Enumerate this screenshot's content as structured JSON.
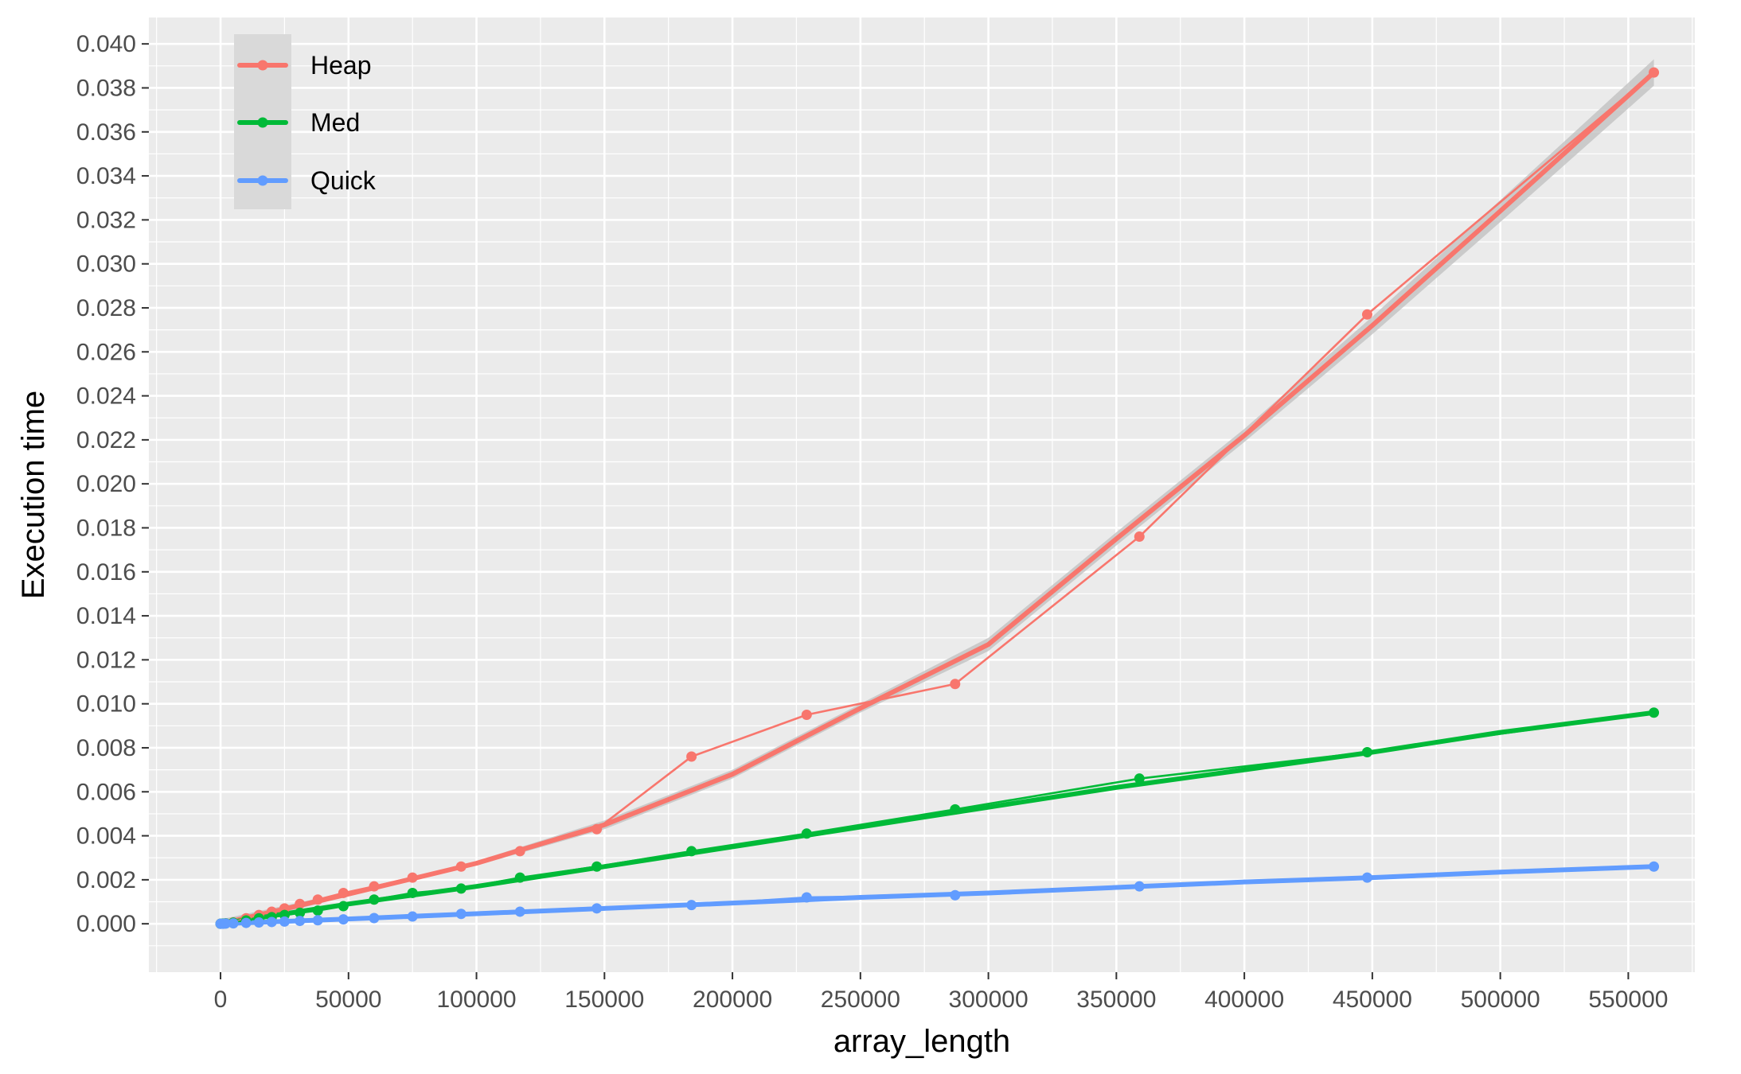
{
  "chart_data": {
    "type": "line",
    "xlabel": "array_length",
    "ylabel": "Execution time",
    "xlim": [
      -28000,
      576000
    ],
    "ylim": [
      -0.0022,
      0.0412
    ],
    "x_ticks": [
      0,
      50000,
      100000,
      150000,
      200000,
      250000,
      300000,
      350000,
      400000,
      450000,
      500000,
      550000
    ],
    "x_tick_labels": [
      "0",
      "50000",
      "100000",
      "150000",
      "200000",
      "250000",
      "300000",
      "350000",
      "400000",
      "450000",
      "500000",
      "550000"
    ],
    "y_ticks": [
      0.0,
      0.002,
      0.004,
      0.006,
      0.008,
      0.01,
      0.012,
      0.014,
      0.016,
      0.018,
      0.02,
      0.022,
      0.024,
      0.026,
      0.028,
      0.03,
      0.032,
      0.034,
      0.036,
      0.038,
      0.04
    ],
    "y_tick_labels": [
      "0.000",
      "0.002",
      "0.004",
      "0.006",
      "0.008",
      "0.010",
      "0.012",
      "0.014",
      "0.016",
      "0.018",
      "0.020",
      "0.022",
      "0.024",
      "0.026",
      "0.028",
      "0.030",
      "0.032",
      "0.034",
      "0.036",
      "0.038",
      "0.040"
    ],
    "grid": true,
    "legend_position": "top-left",
    "colors": {
      "Heap": "#f8766d",
      "Med": "#00ba38",
      "Quick": "#619cff",
      "band": "#bfbfbf",
      "panel": "#ebebeb",
      "grid": "#ffffff"
    },
    "x": [
      0,
      1000,
      2000,
      5000,
      10000,
      15000,
      20000,
      25000,
      31000,
      38000,
      48000,
      60000,
      75000,
      94000,
      117000,
      147000,
      184000,
      229000,
      287000,
      359000,
      448000,
      560000
    ],
    "series": [
      {
        "name": "Heap",
        "values": [
          0.0,
          1e-05,
          2e-05,
          6e-05,
          0.00025,
          0.0004,
          0.00055,
          0.0007,
          0.0009,
          0.0011,
          0.0014,
          0.0017,
          0.0021,
          0.0026,
          0.0033,
          0.0043,
          0.0076,
          0.0095,
          0.0109,
          0.0176,
          0.0277,
          0.0387
        ]
      },
      {
        "name": "Med",
        "values": [
          0.0,
          1e-05,
          2e-05,
          5e-05,
          0.00015,
          0.00025,
          0.0003,
          0.0004,
          0.0005,
          0.0006,
          0.0008,
          0.0011,
          0.0014,
          0.0016,
          0.0021,
          0.0026,
          0.0033,
          0.0041,
          0.0052,
          0.0066,
          0.0078,
          0.0096
        ]
      },
      {
        "name": "Quick",
        "values": [
          0.0,
          0.0,
          1e-05,
          2e-05,
          4e-05,
          6e-05,
          8e-05,
          0.0001,
          0.00013,
          0.00016,
          0.0002,
          0.00026,
          0.00033,
          0.00045,
          0.00055,
          0.0007,
          0.00085,
          0.0012,
          0.0013,
          0.0017,
          0.0021,
          0.0026
        ]
      }
    ],
    "smooth_fits": [
      {
        "name": "Heap",
        "x": [
          0,
          50000,
          100000,
          150000,
          200000,
          250000,
          300000,
          350000,
          400000,
          450000,
          500000,
          560000
        ],
        "values": [
          0.0,
          0.00135,
          0.00275,
          0.0045,
          0.0068,
          0.0098,
          0.0127,
          0.0175,
          0.0222,
          0.0272,
          0.0324,
          0.0387
        ],
        "band_halfwidth": [
          0.0002,
          0.0001,
          0.0001,
          0.0002,
          0.0002,
          0.0002,
          0.0003,
          0.0003,
          0.0003,
          0.0004,
          0.0005,
          0.0006
        ]
      },
      {
        "name": "Med",
        "x": [
          0,
          50000,
          100000,
          150000,
          200000,
          250000,
          300000,
          350000,
          400000,
          450000,
          500000,
          560000
        ],
        "values": [
          0.0,
          0.0009,
          0.0017,
          0.0026,
          0.0035,
          0.0044,
          0.0053,
          0.0062,
          0.007,
          0.0078,
          0.0087,
          0.0096
        ],
        "band_halfwidth": [
          0.0001,
          0.0001,
          0.0001,
          0.0001,
          0.0001,
          0.0001,
          0.0001,
          0.0001,
          0.0001,
          0.0001,
          0.0001,
          0.0001
        ]
      },
      {
        "name": "Quick",
        "x": [
          0,
          50000,
          100000,
          150000,
          200000,
          250000,
          300000,
          350000,
          400000,
          450000,
          500000,
          560000
        ],
        "values": [
          0.0,
          0.00022,
          0.00046,
          0.0007,
          0.00094,
          0.0012,
          0.0014,
          0.00165,
          0.0019,
          0.0021,
          0.00235,
          0.0026
        ],
        "band_halfwidth": [
          0.0001,
          0.0001,
          0.0001,
          0.0001,
          0.0001,
          0.0001,
          0.0001,
          0.0001,
          0.0001,
          0.0001,
          0.0001,
          0.0001
        ]
      }
    ]
  }
}
